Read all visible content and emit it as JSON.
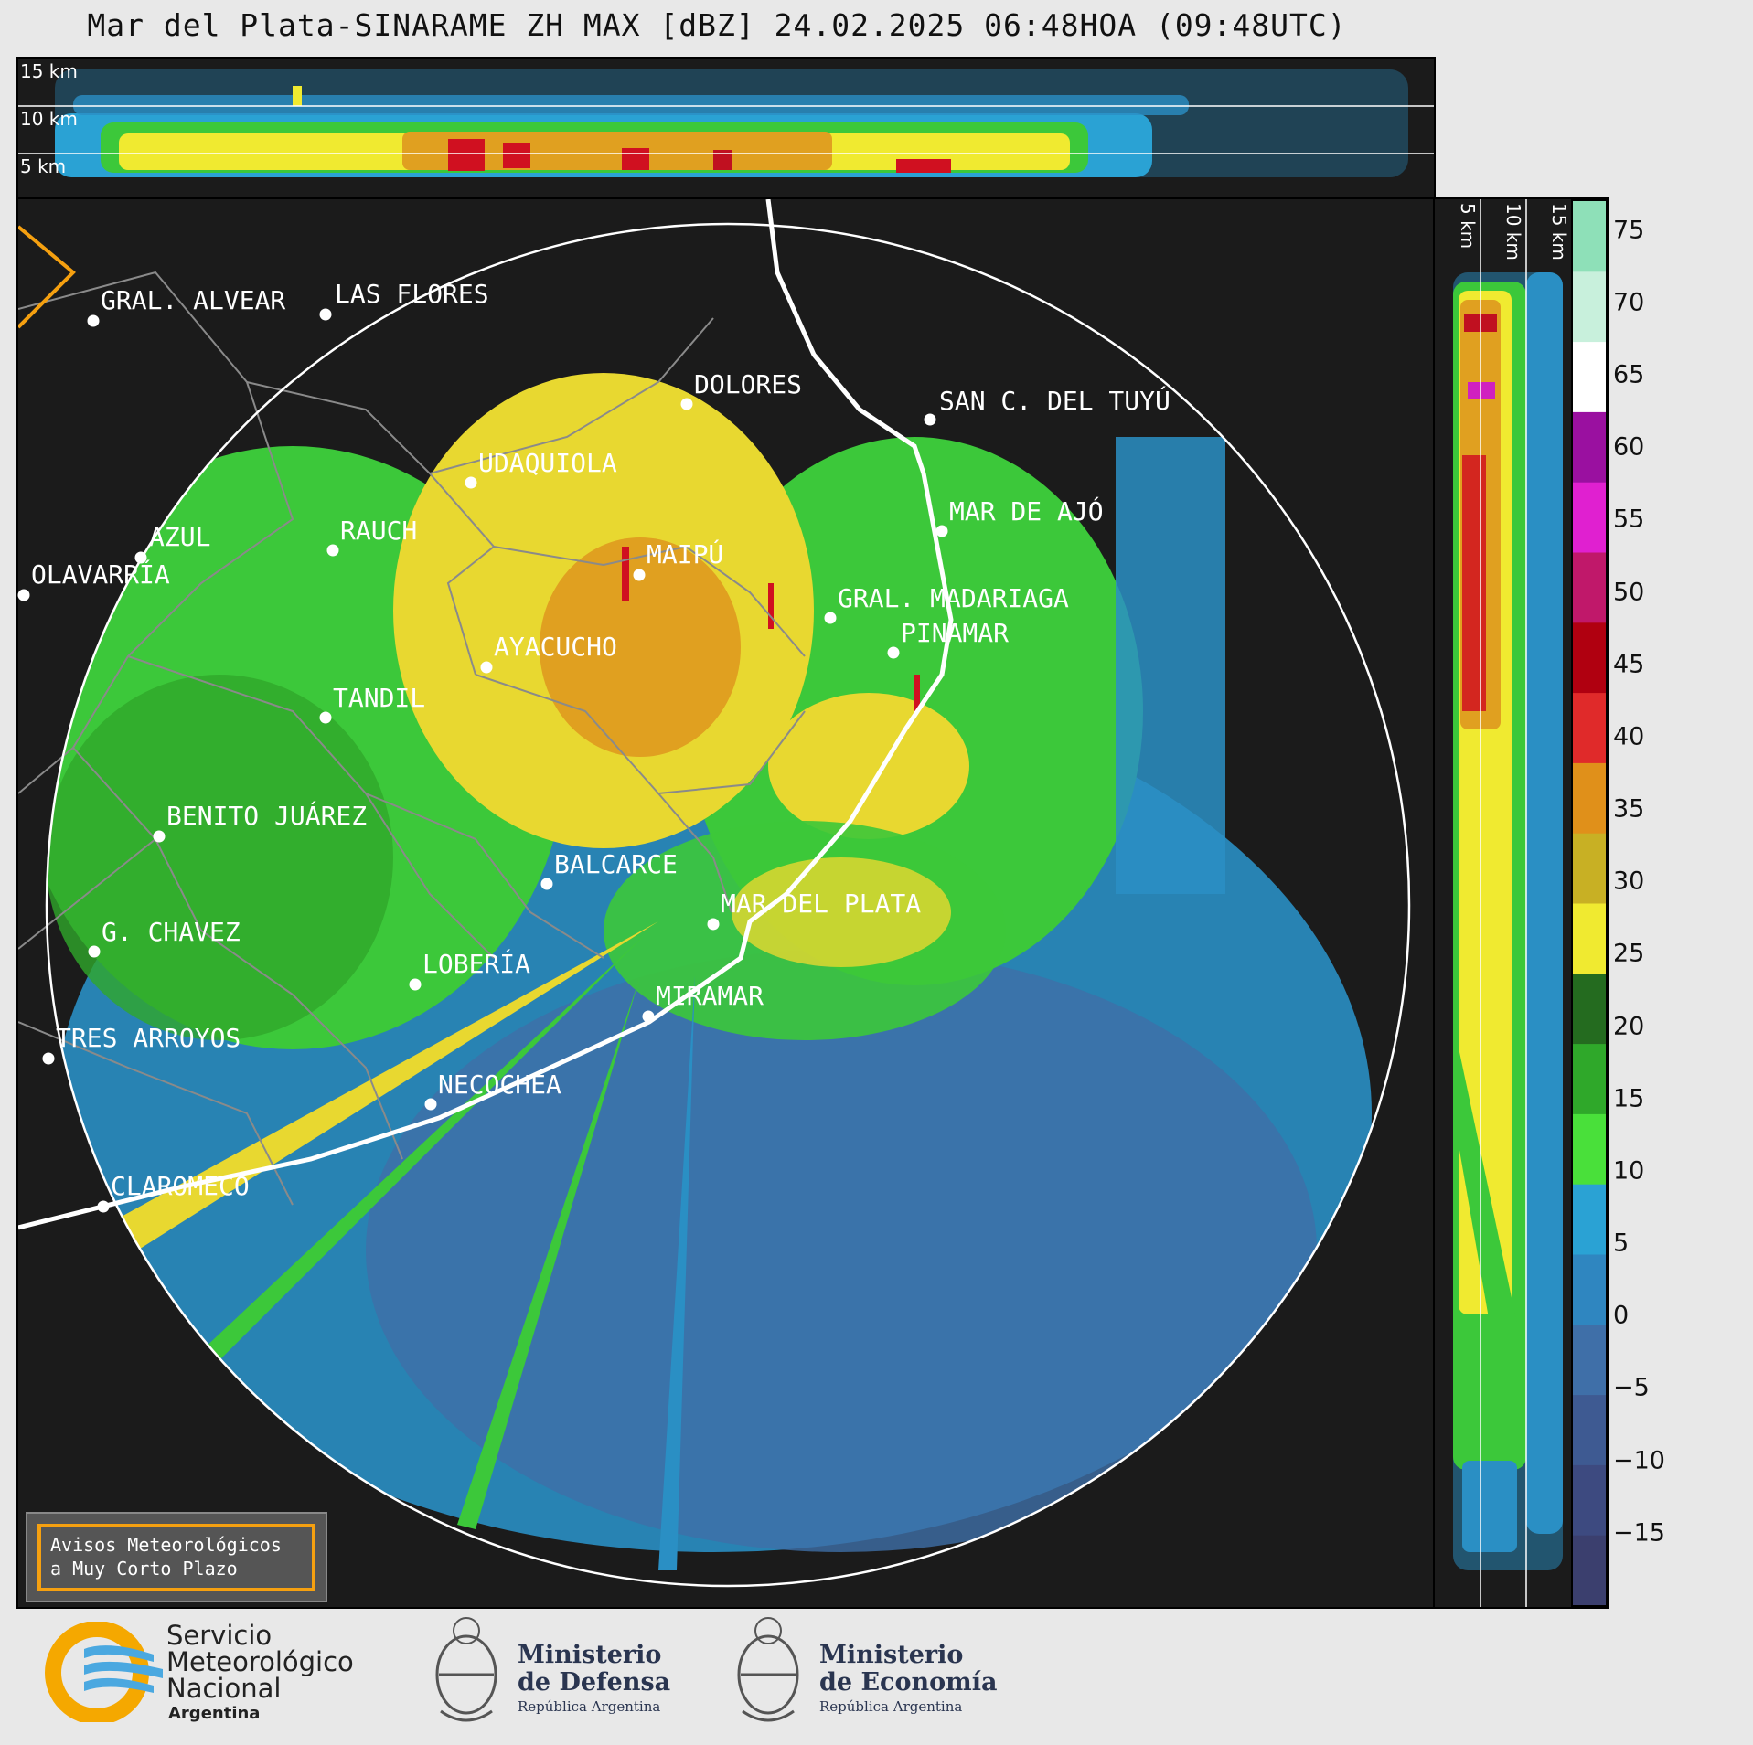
{
  "title": "Mar del Plata-SINARAME ZH MAX [dBZ] 24.02.2025 06:48HOA (09:48UTC)",
  "top_panel": {
    "altitude_labels": [
      "15 km",
      "10 km",
      "5 km"
    ]
  },
  "side_panel": {
    "altitude_labels": [
      "5 km",
      "10 km",
      "15 km"
    ]
  },
  "colorbar": {
    "tick_labels": [
      "75",
      "70",
      "65",
      "60",
      "55",
      "50",
      "45",
      "40",
      "35",
      "30",
      "25",
      "20",
      "15",
      "10",
      "5",
      "0",
      "−5",
      "−10",
      "−15"
    ],
    "range": [
      -20,
      77
    ],
    "colors": [
      "#3b3f6e",
      "#3d4a80",
      "#3e5a92",
      "#3f6fa8",
      "#2f86c0",
      "#2aa2d4",
      "#49e03a",
      "#2fa82a",
      "#246b1f",
      "#f0ea30",
      "#c8b024",
      "#e0901a",
      "#e02a2a",
      "#b00010",
      "#c0186a",
      "#e020d0",
      "#9a10a0",
      "#ffffff",
      "#c8f0dc",
      "#8ee0b8"
    ]
  },
  "cities": [
    {
      "name": "GRAL. ALVEAR"
    },
    {
      "name": "LAS FLORES"
    },
    {
      "name": "DOLORES"
    },
    {
      "name": "SAN C. DEL TUYÚ"
    },
    {
      "name": "UDAQUIOLA"
    },
    {
      "name": "MAR DE AJÓ"
    },
    {
      "name": "AZUL"
    },
    {
      "name": "RAUCH"
    },
    {
      "name": "OLAVARRÍA"
    },
    {
      "name": "MAIPÚ"
    },
    {
      "name": "GRAL. MADARIAGA"
    },
    {
      "name": "PINAMAR"
    },
    {
      "name": "AYACUCHO"
    },
    {
      "name": "TANDIL"
    },
    {
      "name": "BENITO JUÁREZ"
    },
    {
      "name": "BALCARCE"
    },
    {
      "name": "MAR DEL PLATA"
    },
    {
      "name": "G. CHAVEZ"
    },
    {
      "name": "LOBERÍA"
    },
    {
      "name": "MIRAMAR"
    },
    {
      "name": "TRES ARROYOS"
    },
    {
      "name": "NECOCHEA"
    },
    {
      "name": "CLAROMECÓ"
    }
  ],
  "avisos": {
    "line1": "Avisos Meteorológicos",
    "line2": "a Muy Corto Plazo"
  },
  "logos": {
    "smn": {
      "line1": "Servicio",
      "line2": "Meteorológico",
      "line3": "Nacional",
      "line4": "Argentina"
    },
    "defensa": {
      "line1": "Ministerio",
      "line2": "de Defensa",
      "line3": "República Argentina"
    },
    "economia": {
      "line1": "Ministerio",
      "line2": "de Economía",
      "line3": "República Argentina"
    }
  }
}
